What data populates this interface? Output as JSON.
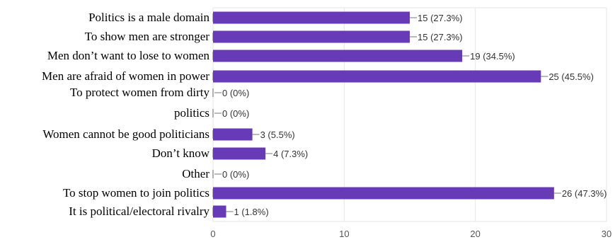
{
  "chart_data": {
    "type": "bar",
    "orientation": "horizontal",
    "categories": [
      "Politics is a male domain",
      "To show men are stronger",
      "Men don’t want to lose to women",
      "Men are afraid of women in power",
      "To protect women from dirty",
      "politics",
      "Women cannot be good politicians",
      "Don’t know",
      "Other",
      "To stop women to join politics",
      "It is political/electoral rivalry"
    ],
    "values": [
      15,
      15,
      19,
      25,
      0,
      0,
      3,
      4,
      0,
      26,
      1
    ],
    "value_labels": [
      "15 (27.3%)",
      "15 (27.3%)",
      "19 (34.5%)",
      "25 (45.5%)",
      "0 (0%)",
      "0 (0%)",
      "3 (5.5%)",
      "4 (7.3%)",
      "0 (0%)",
      "26 (47.3%)",
      "1 (1.8%)"
    ],
    "xticks": [
      "0",
      "10",
      "20",
      "30"
    ],
    "xlim": [
      0,
      30
    ],
    "grid": true,
    "bar_color": "#673ab7",
    "grid_color": "#e6e6e6"
  }
}
